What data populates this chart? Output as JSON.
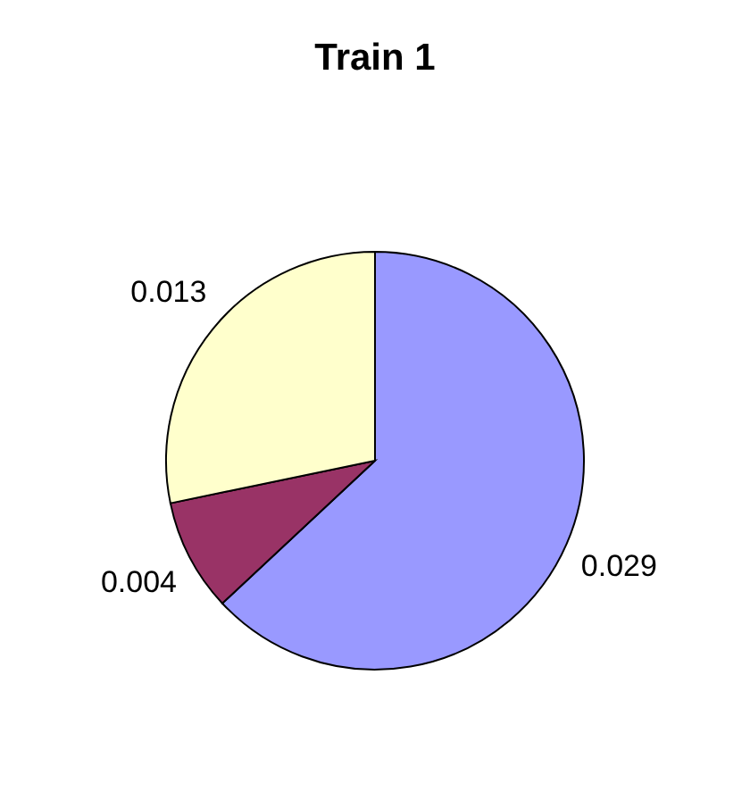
{
  "chart_data": {
    "type": "pie",
    "title": "Train 1",
    "categories": [
      null,
      null,
      null
    ],
    "values": [
      0.029,
      0.004,
      0.013
    ],
    "colors": [
      "#9999ff",
      "#993366",
      "#ffffcc"
    ],
    "data_labels": true
  }
}
